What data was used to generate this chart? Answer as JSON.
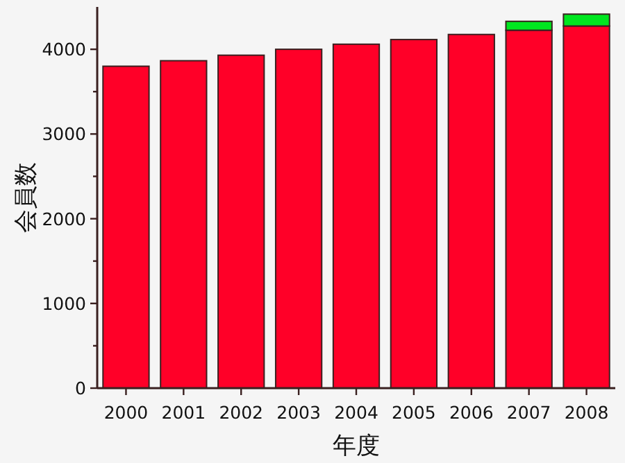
{
  "chart_data": {
    "type": "bar",
    "xlabel": "年度",
    "ylabel": "会員数",
    "categories": [
      "2000",
      "2001",
      "2002",
      "2003",
      "2004",
      "2005",
      "2006",
      "2007",
      "2008"
    ],
    "stacked": true,
    "series": [
      {
        "color": "#ff0028",
        "values": [
          3800,
          3865,
          3930,
          4000,
          4060,
          4115,
          4175,
          4225,
          4275
        ]
      },
      {
        "color": "#00e620",
        "values": [
          null,
          null,
          null,
          null,
          null,
          null,
          null,
          105,
          140
        ]
      }
    ],
    "ylim": [
      0,
      4500
    ],
    "yticks": [
      0,
      {
        "value": 500,
        "label": null
      },
      1000,
      {
        "value": 1500,
        "label": null
      },
      2000,
      {
        "value": 2500,
        "label": null
      },
      3000,
      {
        "value": 3500,
        "label": null
      },
      4000
    ]
  }
}
